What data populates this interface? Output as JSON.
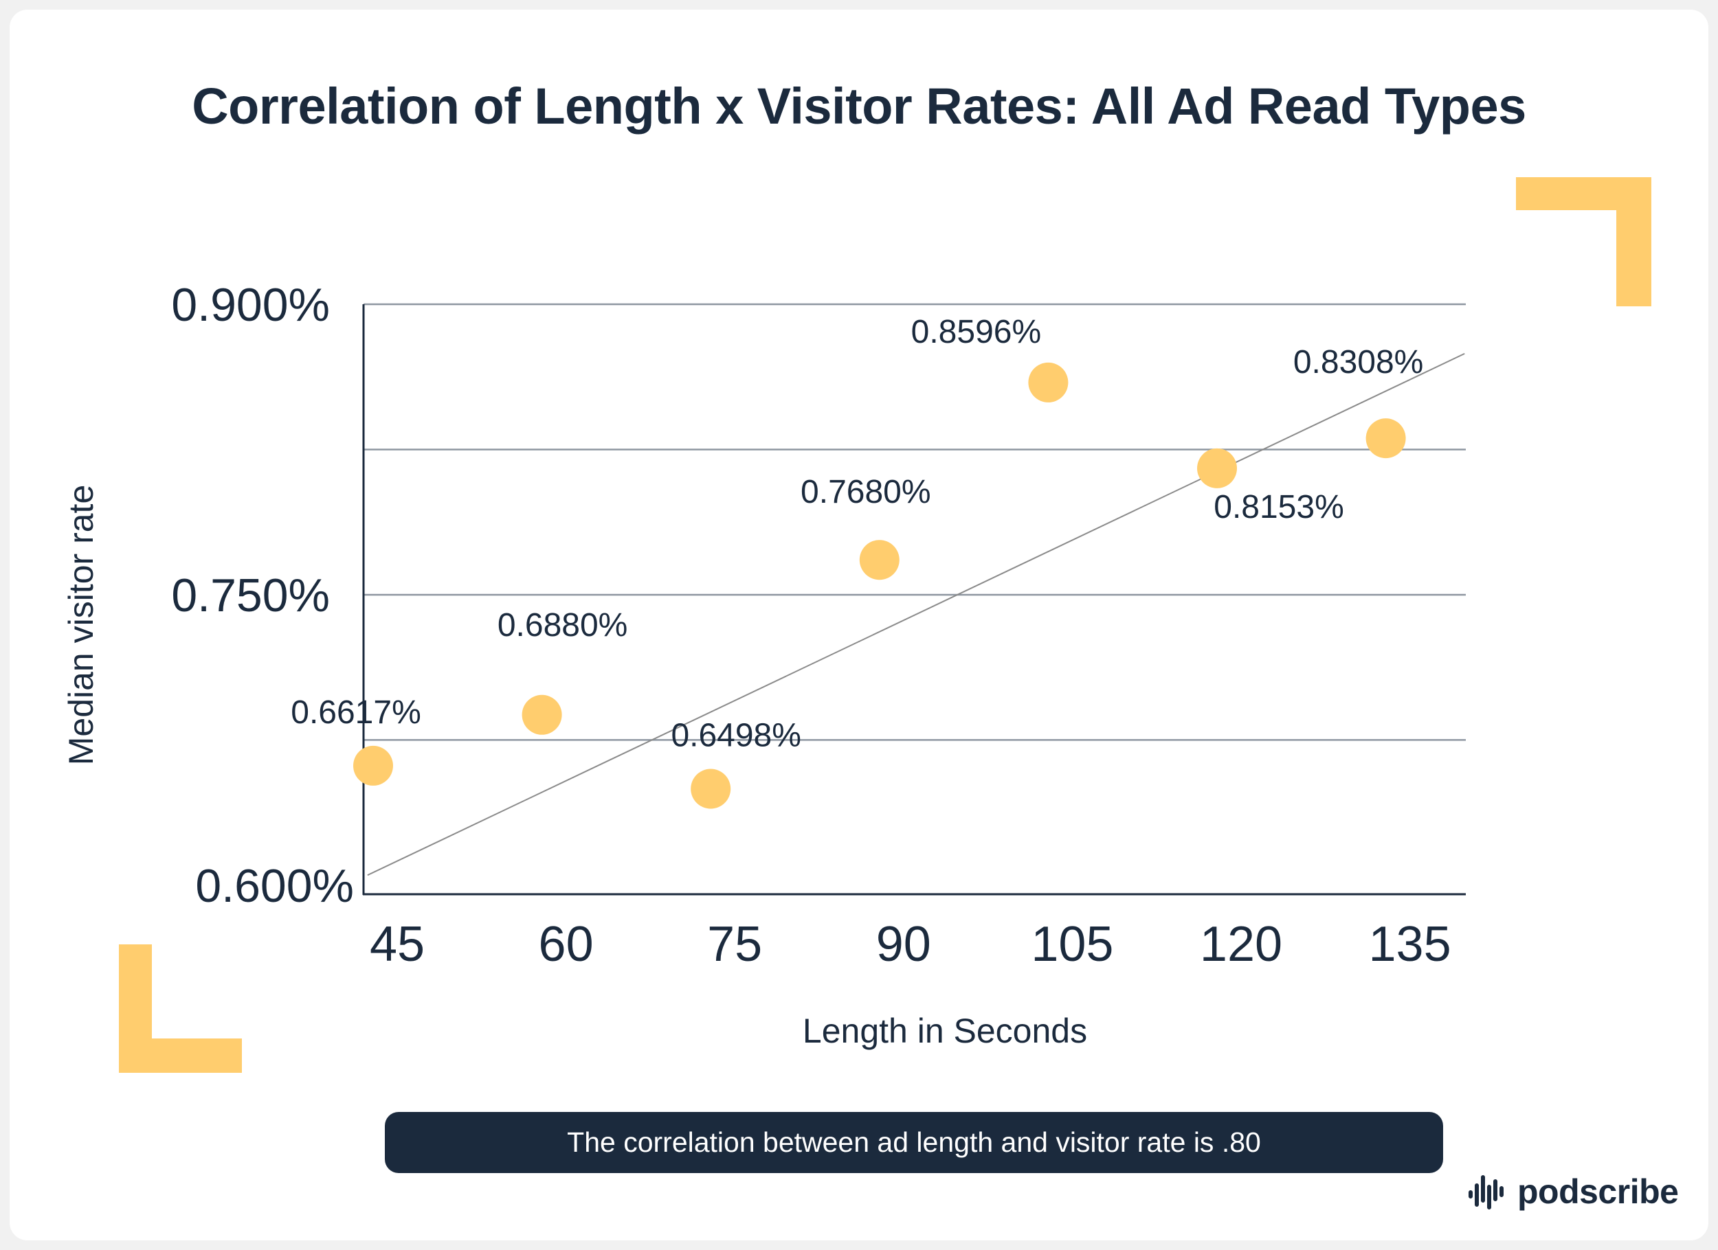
{
  "chart_data": {
    "type": "scatter",
    "title": "Correlation of Length x Visitor Rates: All Ad Read Types",
    "xlabel": "Length in Seconds",
    "ylabel": "Median visitor rate",
    "x": [
      45,
      60,
      75,
      90,
      105,
      120,
      135
    ],
    "xticks": [
      "45",
      "60",
      "75",
      "90",
      "105",
      "120",
      "135"
    ],
    "y": [
      0.6617,
      0.688,
      0.6498,
      0.768,
      0.8596,
      0.8153,
      0.8308
    ],
    "point_labels": [
      "0.6617%",
      "0.6880%",
      "0.6498%",
      "0.7680%",
      "0.8596%",
      "0.8153%",
      "0.8308%"
    ],
    "yticks": [
      {
        "value": 0.9,
        "label": "0.900%"
      },
      {
        "value": 0.75,
        "label": "0.750%"
      },
      {
        "value": 0.6,
        "label": "0.600%"
      }
    ],
    "ylim": [
      0.595,
      0.9
    ],
    "gridlines": [
      0.9,
      0.825,
      0.75,
      0.675
    ],
    "trendline": {
      "start": [
        44.5,
        0.6052
      ],
      "end": [
        142,
        0.8745
      ]
    },
    "point_color": "#ffcd6e",
    "accent_color": "#ffcd6e"
  },
  "footer": {
    "note": "The correlation between ad length and visitor rate is .80",
    "brand": "podscribe"
  },
  "colors": {
    "dark": "#1b2a3d",
    "grid": "#8d96a0",
    "background": "#ffffff"
  }
}
